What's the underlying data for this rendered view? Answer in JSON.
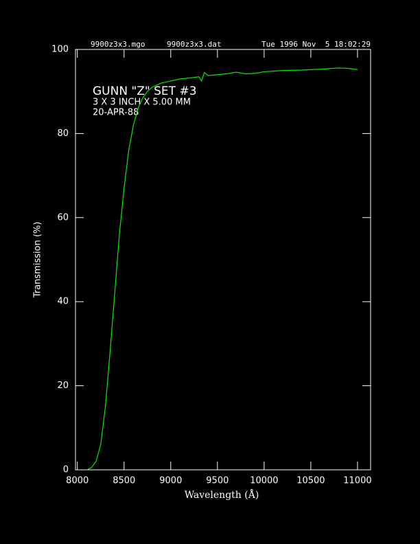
{
  "chart_data": {
    "type": "line",
    "header": [
      "9900z3x3.mgo",
      "9900z3x3.dat",
      "Tue 1996 Nov  5 18:02:29"
    ],
    "annotations": [
      "GUNN \"Z\" SET #3",
      "3 X 3 INCH X 5.00 MM",
      "20-APR-88"
    ],
    "x_label": "Wavelength (Å)",
    "y_label": "Transmission (%)",
    "x": [
      8100,
      8150,
      8200,
      8250,
      8300,
      8350,
      8400,
      8450,
      8500,
      8550,
      8600,
      8650,
      8700,
      8750,
      8800,
      8900,
      9000,
      9100,
      9200,
      9300,
      9330,
      9360,
      9400,
      9500,
      9600,
      9700,
      9800,
      9900,
      10000,
      10200,
      10400,
      10600,
      10800,
      10900,
      11000
    ],
    "series": [
      {
        "color": "#00ee00",
        "values": [
          0,
          0.5,
          2,
          6,
          15,
          28,
          42,
          56,
          67,
          76,
          82,
          86,
          88.5,
          90,
          91,
          92,
          92.5,
          93,
          93.2,
          93.5,
          92.5,
          94.5,
          93.8,
          94,
          94.2,
          94.6,
          94.2,
          94.3,
          94.7,
          95,
          95.1,
          95.3,
          95.6,
          95.5,
          95.2
        ]
      }
    ],
    "xlim": [
      7980,
      11140
    ],
    "xticks": [
      8000,
      8500,
      9000,
      9500,
      10000,
      10500,
      11000
    ],
    "ylim": [
      0,
      100
    ],
    "yticks": [
      0,
      20,
      40,
      60,
      80,
      100
    ]
  }
}
